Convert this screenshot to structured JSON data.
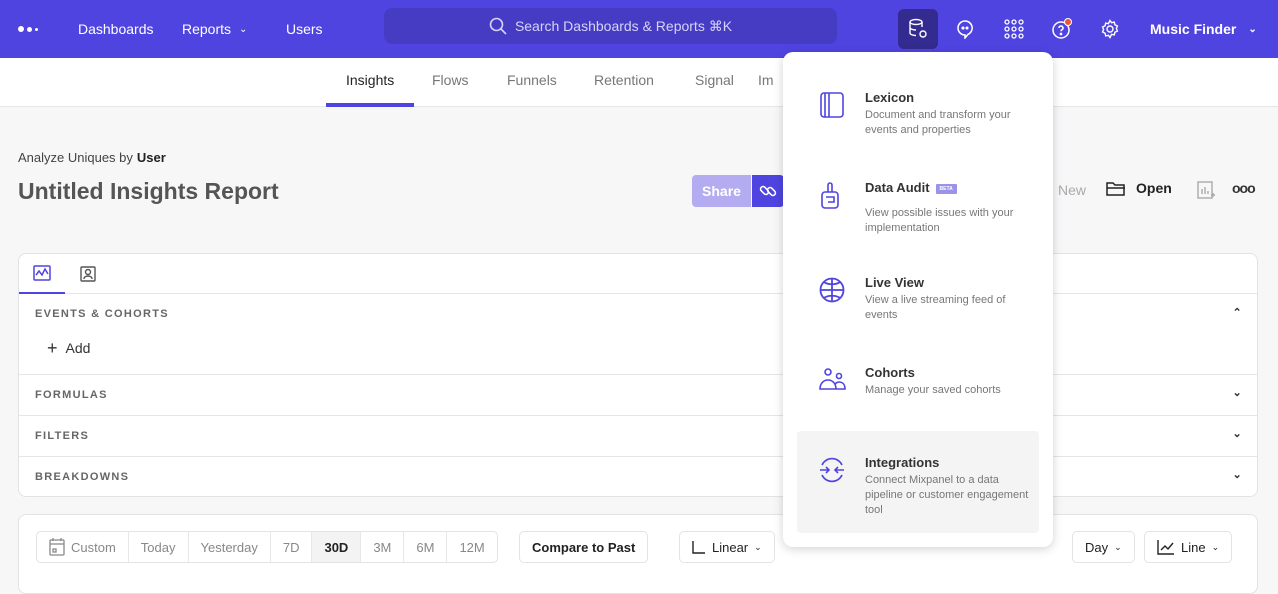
{
  "nav": {
    "links": [
      "Dashboards",
      "Reports",
      "Users"
    ],
    "search_placeholder": "Search Dashboards & Reports ⌘K",
    "project": "Music Finder",
    "brand_color": "#4f44e0"
  },
  "tabs": [
    "Insights",
    "Flows",
    "Funnels",
    "Retention",
    "Signal",
    "Im"
  ],
  "report": {
    "analyze_label": "Analyze Uniques by",
    "analyze_value": "User",
    "title": "Untitled Insights Report",
    "share": "Share",
    "new": "New",
    "open": "Open"
  },
  "query": {
    "sections": [
      "EVENTS & COHORTS",
      "FORMULAS",
      "FILTERS",
      "BREAKDOWNS"
    ],
    "add": "Add"
  },
  "controls": {
    "ranges": [
      "Custom",
      "Today",
      "Yesterday",
      "7D",
      "30D",
      "3M",
      "6M",
      "12M"
    ],
    "selected_range": "30D",
    "compare": "Compare to Past",
    "scale": "Linear",
    "interval": "Day",
    "chart_type": "Line"
  },
  "menu": [
    {
      "title": "Lexicon",
      "desc": "Document and transform your events and properties",
      "icon": "book-icon"
    },
    {
      "title": "Data Audit",
      "badge": "BETA",
      "desc": "View possible issues with your implementation",
      "icon": "audit-icon"
    },
    {
      "title": "Live View",
      "desc": "View a live streaming feed of events",
      "icon": "globe-icon"
    },
    {
      "title": "Cohorts",
      "desc": "Manage your saved cohorts",
      "icon": "users-icon"
    },
    {
      "title": "Integrations",
      "desc": "Connect Mixpanel to a data pipeline or customer engagement tool",
      "icon": "integrations-icon"
    }
  ]
}
